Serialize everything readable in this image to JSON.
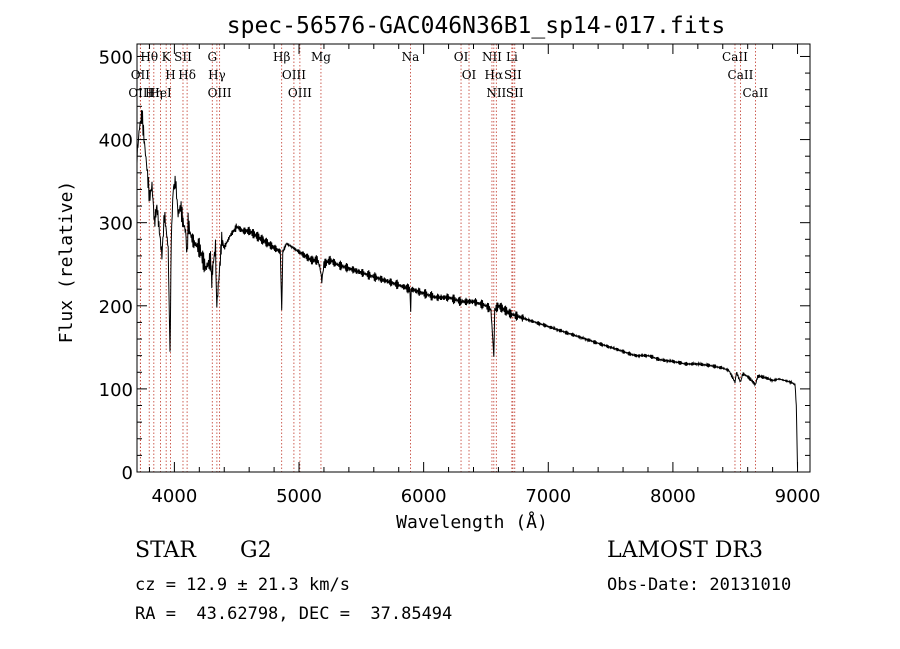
{
  "chart_data": {
    "type": "line",
    "title": "spec-56576-GAC046N36B1_sp14-017.fits",
    "xlabel": "Wavelength (Å)",
    "ylabel": "Flux (relative)",
    "xlim": [
      3700,
      9100
    ],
    "ylim": [
      0,
      515
    ],
    "xticks": [
      4000,
      5000,
      6000,
      7000,
      8000,
      9000
    ],
    "yticks": [
      0,
      100,
      200,
      300,
      400,
      500
    ],
    "grid": false,
    "series": [
      {
        "name": "spectrum",
        "x": [
          3700,
          3720,
          3740,
          3760,
          3780,
          3800,
          3820,
          3840,
          3860,
          3880,
          3900,
          3920,
          3950,
          3965,
          3975,
          3990,
          4010,
          4030,
          4050,
          4070,
          4090,
          4102,
          4110,
          4130,
          4160,
          4200,
          4250,
          4290,
          4300,
          4310,
          4330,
          4340,
          4360,
          4380,
          4400,
          4450,
          4500,
          4550,
          4600,
          4650,
          4700,
          4750,
          4800,
          4850,
          4861,
          4870,
          4900,
          4950,
          5000,
          5050,
          5100,
          5150,
          5170,
          5183,
          5200,
          5250,
          5300,
          5400,
          5500,
          5600,
          5700,
          5800,
          5890,
          5896,
          5900,
          6000,
          6100,
          6200,
          6300,
          6400,
          6500,
          6540,
          6563,
          6570,
          6600,
          6650,
          6700,
          6800,
          6900,
          7000,
          7100,
          7200,
          7300,
          7400,
          7500,
          7600,
          7700,
          7800,
          7900,
          8000,
          8100,
          8200,
          8300,
          8400,
          8450,
          8498,
          8510,
          8542,
          8560,
          8600,
          8662,
          8680,
          8700,
          8750,
          8800,
          8850,
          8900,
          8950,
          8980,
          8990,
          9000
        ],
        "y": [
          380,
          415,
          430,
          395,
          365,
          330,
          345,
          300,
          320,
          290,
          260,
          310,
          270,
          140,
          280,
          340,
          350,
          310,
          320,
          300,
          290,
          260,
          300,
          285,
          275,
          270,
          245,
          255,
          230,
          250,
          270,
          200,
          240,
          280,
          270,
          285,
          295,
          290,
          290,
          285,
          280,
          275,
          270,
          265,
          195,
          265,
          275,
          270,
          265,
          260,
          255,
          255,
          245,
          230,
          250,
          255,
          250,
          245,
          240,
          235,
          230,
          225,
          220,
          195,
          220,
          215,
          210,
          210,
          205,
          205,
          200,
          195,
          140,
          195,
          200,
          195,
          190,
          185,
          180,
          175,
          170,
          165,
          160,
          155,
          150,
          145,
          140,
          140,
          135,
          133,
          130,
          130,
          128,
          125,
          122,
          108,
          120,
          108,
          118,
          115,
          105,
          115,
          115,
          113,
          110,
          112,
          110,
          108,
          105,
          80,
          5
        ]
      }
    ],
    "lines": [
      {
        "name": "Hθ",
        "wave": 3798
      },
      {
        "name": "OII",
        "wave": 3727
      },
      {
        "name": "OIII",
        "wave": 3727
      },
      {
        "name": "Hη",
        "wave": 3835
      },
      {
        "name": "HeI",
        "wave": 3889
      },
      {
        "name": "K",
        "wave": 3934
      },
      {
        "name": "H",
        "wave": 3969
      },
      {
        "name": "SII",
        "wave": 4069
      },
      {
        "name": "Hδ",
        "wave": 4102
      },
      {
        "name": "G",
        "wave": 4304
      },
      {
        "name": "Hγ",
        "wave": 4341
      },
      {
        "name": "OIII",
        "wave": 4363
      },
      {
        "name": "Hβ",
        "wave": 4861
      },
      {
        "name": "OIII",
        "wave": 4959
      },
      {
        "name": "OIII",
        "wave": 5007
      },
      {
        "name": "Mg",
        "wave": 5176
      },
      {
        "name": "Na",
        "wave": 5894
      },
      {
        "name": "OI",
        "wave": 6300
      },
      {
        "name": "OI",
        "wave": 6364
      },
      {
        "name": "NII",
        "wave": 6548
      },
      {
        "name": "Hα",
        "wave": 6563
      },
      {
        "name": "NII",
        "wave": 6583
      },
      {
        "name": "Li",
        "wave": 6708
      },
      {
        "name": "SII",
        "wave": 6716
      },
      {
        "name": "SII",
        "wave": 6731
      },
      {
        "name": "CaII",
        "wave": 8498
      },
      {
        "name": "CaII",
        "wave": 8542
      },
      {
        "name": "CaII",
        "wave": 8662
      }
    ]
  },
  "info": {
    "object_class": "STAR",
    "subclass": "G2",
    "survey": "LAMOST DR3",
    "redshift": "cz = 12.9 ± 21.3 km/s",
    "obs_date": "Obs-Date: 20131010",
    "coords": "RA =  43.62798, DEC =  37.85494"
  },
  "colors": {
    "line_marker": "#c0392b",
    "spectrum": "#000000",
    "axes": "#000000"
  }
}
